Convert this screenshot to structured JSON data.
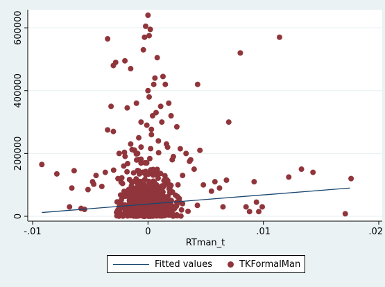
{
  "chart_data": {
    "type": "scatter",
    "title": "",
    "xlabel": "RTman_t",
    "ylabel": "",
    "xlim": [
      -0.01,
      0.02
    ],
    "ylim": [
      0,
      640000
    ],
    "x_ticks": [
      -0.01,
      0,
      0.01,
      0.02
    ],
    "x_tick_labels": [
      "-.01",
      "0",
      ".01",
      ".02"
    ],
    "y_ticks": [
      0,
      200000,
      400000,
      600000
    ],
    "y_tick_labels": [
      "0",
      "200000",
      "400000",
      "600000"
    ],
    "grid": "horizontal",
    "legend_position": "bottom",
    "colors": {
      "scatter": "#90353b",
      "fit_line": "#1a476f",
      "plot_background": "#ffffff",
      "figure_background": "#eaf2f3",
      "grid": "#eaf2f3"
    },
    "series": [
      {
        "name": "Fitted values",
        "kind": "line",
        "x": [
          -0.0092,
          0.0175
        ],
        "y": [
          12000,
          90000
        ]
      },
      {
        "name": "TKFormalMan",
        "kind": "scatter",
        "x": [
          0.0,
          -0.0002,
          0.0002,
          0.0001,
          -0.0003,
          -0.0035,
          -0.0028,
          -0.003,
          -0.002,
          -0.0015,
          0.0008,
          0.0013,
          0.0006,
          -0.0004,
          0.0005,
          0.0,
          -0.001,
          -0.0018,
          -0.0032,
          -0.0035,
          -0.003,
          0.0015,
          0.0018,
          0.0012,
          0.002,
          0.0025,
          0.0028,
          0.0043,
          0.0045,
          0.0055,
          0.007,
          0.008,
          0.0114,
          0.0094,
          0.0099,
          0.0122,
          0.0133,
          0.0143,
          0.0176,
          0.0171,
          -0.0092,
          -0.0079,
          -0.0064,
          -0.0066,
          -0.0052,
          -0.0048,
          -0.004,
          -0.0045,
          -0.0037,
          -0.0068,
          -0.0058,
          -0.0055,
          -0.0025,
          -0.0015,
          -0.0008,
          0.0003,
          0.0009,
          0.0017,
          0.0022,
          0.003,
          0.0037,
          0.004,
          0.0048,
          0.0058,
          0.0062,
          0.0065,
          0.0068,
          0.0085,
          0.0088,
          0.0092,
          0.0096,
          0.0036,
          0.0033,
          -0.0021,
          -0.0026,
          -0.0012,
          0.0007,
          -0.0006,
          0.0001,
          0.0011,
          0.0004,
          -0.0001,
          0.0016,
          -0.0009,
          0.0021,
          0.0026,
          -0.0016,
          -0.0022,
          0.001,
          0.0014
        ],
        "y": [
          640000,
          605000,
          595000,
          575000,
          570000,
          565000,
          490000,
          480000,
          495000,
          470000,
          505000,
          445000,
          440000,
          530000,
          420000,
          400000,
          360000,
          345000,
          350000,
          275000,
          270000,
          420000,
          360000,
          300000,
          320000,
          285000,
          215000,
          420000,
          210000,
          80000,
          300000,
          520000,
          570000,
          45000,
          30000,
          125000,
          150000,
          140000,
          120000,
          8000,
          165000,
          135000,
          145000,
          90000,
          85000,
          110000,
          95000,
          130000,
          140000,
          30000,
          25000,
          22000,
          200000,
          230000,
          250000,
          260000,
          240000,
          220000,
          190000,
          130000,
          180000,
          150000,
          100000,
          110000,
          90000,
          30000,
          115000,
          30000,
          15000,
          110000,
          15000,
          175000,
          200000,
          160000,
          120000,
          210000,
          330000,
          300000,
          380000,
          350000,
          320000,
          290000,
          230000,
          200000,
          180000,
          100000,
          60000,
          30000,
          65000,
          40000
        ]
      }
    ]
  },
  "legend": {
    "fitted_label": "Fitted values",
    "scatter_label": "TKFormalMan"
  }
}
